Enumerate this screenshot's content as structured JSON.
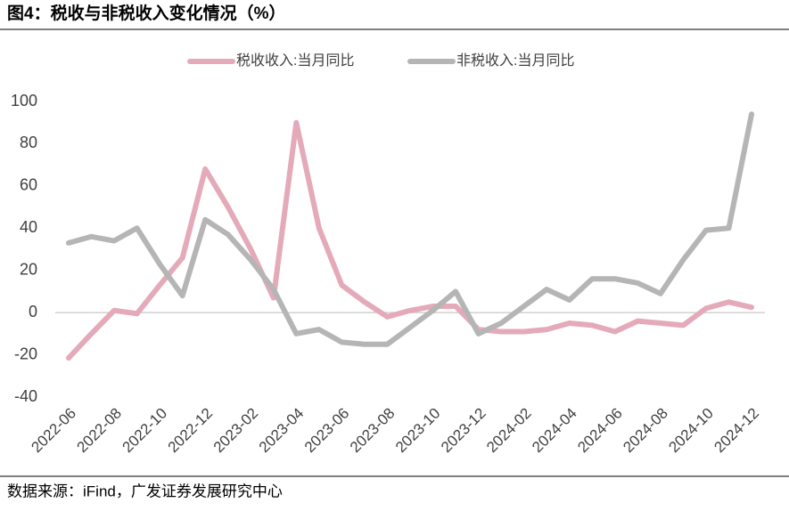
{
  "chart_data": {
    "type": "line",
    "title": "图4：税收与非税收入变化情况（%）",
    "source": "数据来源：iFind，广发证券发展研究中心",
    "categories": [
      "2022-06",
      null,
      "2022-08",
      null,
      "2022-10",
      null,
      "2022-12",
      null,
      "2023-02",
      null,
      "2023-04",
      null,
      "2023-06",
      null,
      "2023-08",
      null,
      "2023-10",
      null,
      "2023-12",
      null,
      "2024-02",
      null,
      "2024-04",
      null,
      "2024-06",
      null,
      "2024-08",
      null,
      "2024-10",
      null,
      "2024-12"
    ],
    "series": [
      {
        "name": "税收收入:当月同比",
        "color": "#e4aab9",
        "values": [
          -21.5,
          -10,
          1,
          -0.5,
          13,
          26,
          68,
          50,
          30,
          7,
          90,
          40,
          13,
          5,
          -2,
          1,
          3,
          3,
          -8,
          -9,
          -9,
          -8,
          -5,
          -6,
          -9,
          -4,
          -5,
          -6,
          2,
          5,
          2.5
        ]
      },
      {
        "name": "非税收入:当月同比",
        "color": "#b5b5b5",
        "values": [
          33,
          36,
          34,
          40,
          23,
          8,
          44,
          37,
          25,
          11,
          -10,
          -8,
          -14,
          -15,
          -15,
          -7,
          1,
          10,
          -10,
          -5,
          3,
          11,
          6,
          16,
          16,
          14,
          9,
          25,
          39,
          40,
          94
        ]
      }
    ],
    "ylim": [
      -40,
      100
    ],
    "yticks": [
      -40,
      -20,
      0,
      20,
      40,
      60,
      80,
      100
    ],
    "grid": false
  }
}
